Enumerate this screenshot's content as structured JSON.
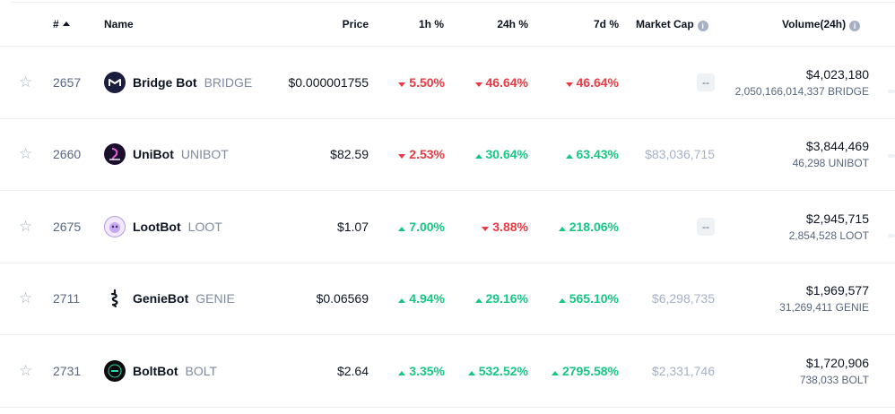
{
  "header": {
    "rank": "#",
    "name": "Name",
    "price": "Price",
    "h1": "1h %",
    "h24": "24h %",
    "d7": "7d %",
    "market_cap": "Market Cap",
    "volume": "Volume(24h)",
    "info_icon": "i"
  },
  "colors": {
    "up": "#16c784",
    "down": "#ea3943",
    "muted": "#a6b0c3",
    "text": "#0d1421"
  },
  "rows": [
    {
      "rank": "2657",
      "name": "Bridge Bot",
      "symbol": "BRIDGE",
      "price": "$0.000001755",
      "h1": "5.50%",
      "h1_dir": "down",
      "h24": "46.64%",
      "h24_dir": "down",
      "d7": "46.64%",
      "d7_dir": "down",
      "market_cap": "--",
      "vol_usd": "$4,023,180",
      "vol_coin": "2,050,166,014,337 BRIDGE",
      "logo_icon": "bridge-bot-logo"
    },
    {
      "rank": "2660",
      "name": "UniBot",
      "symbol": "UNIBOT",
      "price": "$82.59",
      "h1": "2.53%",
      "h1_dir": "down",
      "h24": "30.64%",
      "h24_dir": "up",
      "d7": "63.43%",
      "d7_dir": "up",
      "market_cap": "$83,036,715",
      "vol_usd": "$3,844,469",
      "vol_coin": "46,298 UNIBOT",
      "logo_icon": "unibot-logo"
    },
    {
      "rank": "2675",
      "name": "LootBot",
      "symbol": "LOOT",
      "price": "$1.07",
      "h1": "7.00%",
      "h1_dir": "up",
      "h24": "3.88%",
      "h24_dir": "down",
      "d7": "218.06%",
      "d7_dir": "up",
      "market_cap": "--",
      "vol_usd": "$2,945,715",
      "vol_coin": "2,854,528 LOOT",
      "logo_icon": "lootbot-logo"
    },
    {
      "rank": "2711",
      "name": "GenieBot",
      "symbol": "GENIE",
      "price": "$0.06569",
      "h1": "4.94%",
      "h1_dir": "up",
      "h24": "29.16%",
      "h24_dir": "up",
      "d7": "565.10%",
      "d7_dir": "up",
      "market_cap": "$6,298,735",
      "vol_usd": "$1,969,577",
      "vol_coin": "31,269,411 GENIE",
      "logo_icon": "geniebot-logo"
    },
    {
      "rank": "2731",
      "name": "BoltBot",
      "symbol": "BOLT",
      "price": "$2.64",
      "h1": "3.35%",
      "h1_dir": "up",
      "h24": "532.52%",
      "h24_dir": "up",
      "d7": "2795.58%",
      "d7_dir": "up",
      "market_cap": "$2,331,746",
      "vol_usd": "$1,720,906",
      "vol_coin": "738,033 BOLT",
      "logo_icon": "boltbot-logo"
    }
  ]
}
